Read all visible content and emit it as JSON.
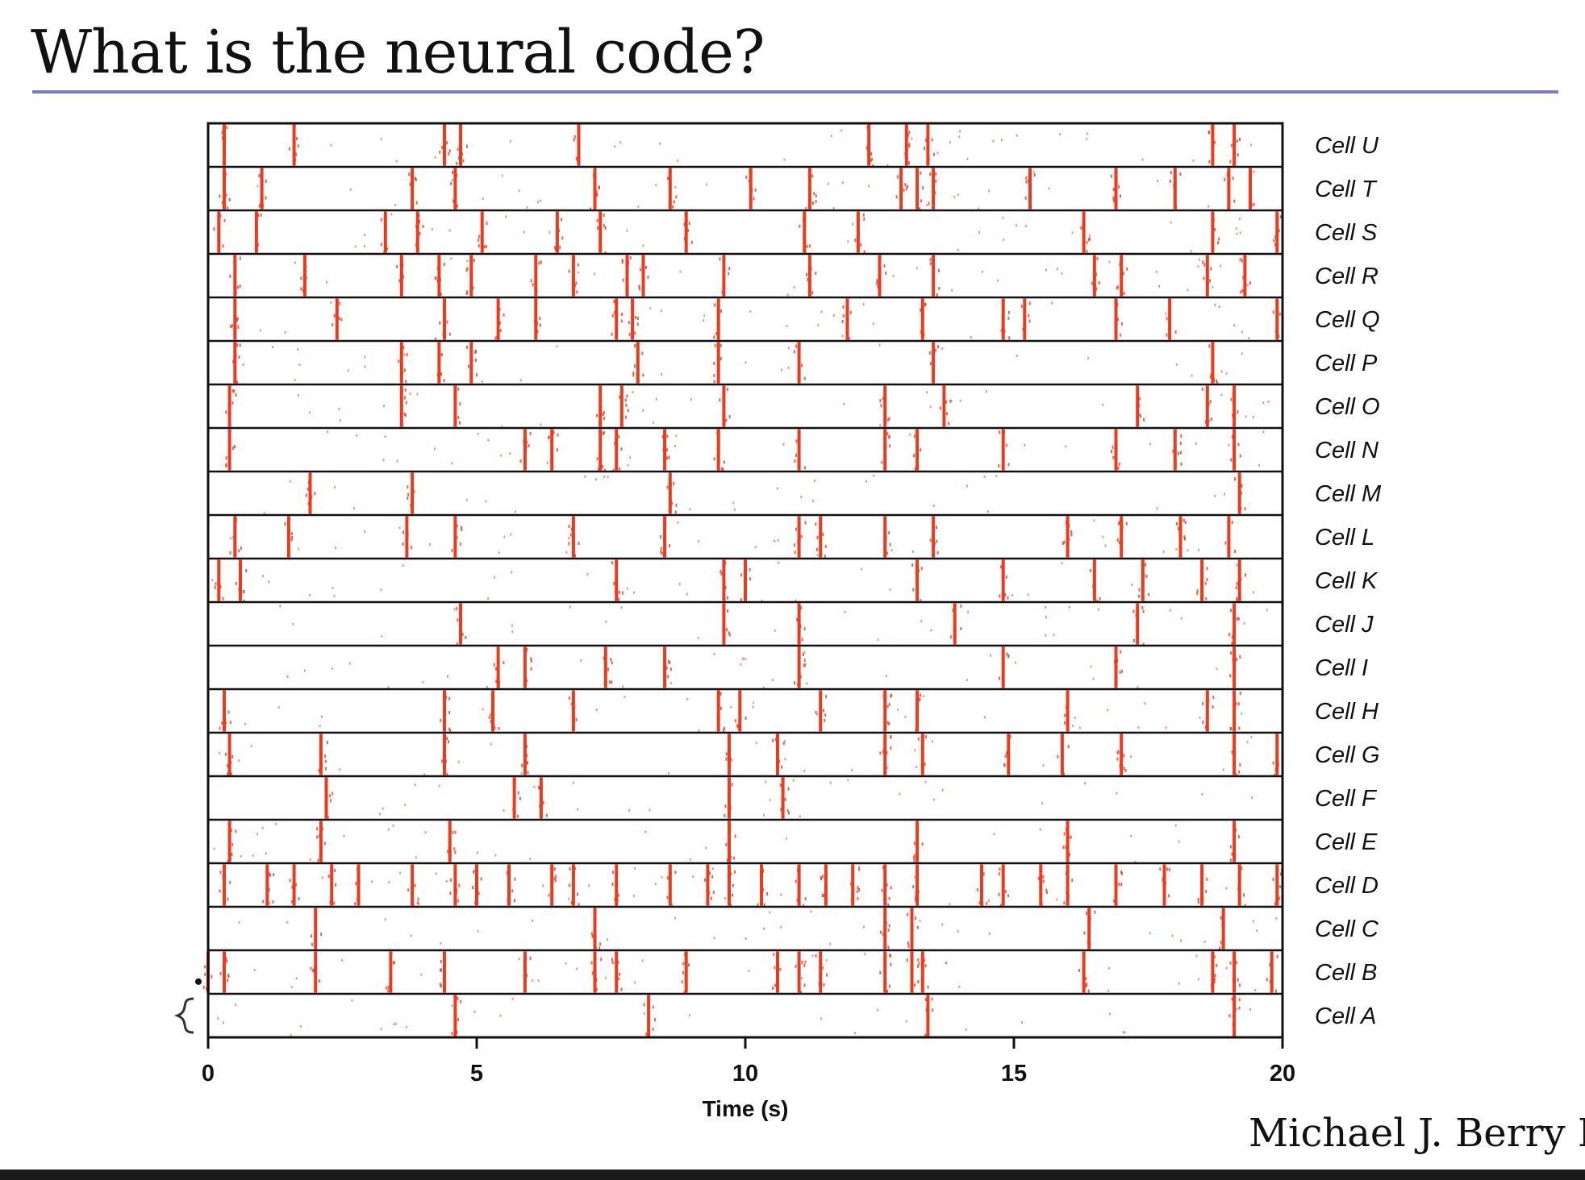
{
  "slide": {
    "title": "What is the neural code?",
    "credit": "Michael J. Berry II"
  },
  "colors": {
    "spike": "#ee3a1c",
    "title_rule": "#7b7bbd",
    "frame": "#111111"
  },
  "chart_data": {
    "type": "raster",
    "xlabel": "Time (s)",
    "ylabel": "",
    "xlim": [
      0,
      20
    ],
    "xticks": [
      0,
      5,
      10,
      15,
      20
    ],
    "cells": [
      {
        "label": "Cell U",
        "events": [
          0.3,
          1.6,
          4.4,
          4.7,
          6.9,
          12.3,
          13.0,
          13.4,
          18.7,
          19.1
        ]
      },
      {
        "label": "Cell T",
        "events": [
          0.3,
          1.0,
          3.8,
          4.6,
          7.2,
          8.6,
          10.1,
          11.2,
          12.9,
          13.2,
          13.5,
          15.3,
          16.9,
          18.0,
          19.0,
          19.4
        ]
      },
      {
        "label": "Cell S",
        "events": [
          0.2,
          0.9,
          3.3,
          3.9,
          5.1,
          6.5,
          7.3,
          8.9,
          11.1,
          12.1,
          16.3,
          18.7,
          19.9
        ]
      },
      {
        "label": "Cell R",
        "events": [
          0.5,
          1.8,
          3.6,
          4.3,
          4.9,
          6.1,
          6.8,
          7.8,
          8.1,
          9.6,
          11.2,
          12.5,
          13.5,
          16.5,
          17.0,
          18.6,
          19.3
        ]
      },
      {
        "label": "Cell Q",
        "events": [
          0.5,
          2.4,
          4.4,
          5.4,
          6.1,
          7.6,
          7.9,
          9.5,
          11.9,
          13.3,
          14.8,
          15.2,
          16.9,
          17.9,
          19.9
        ]
      },
      {
        "label": "Cell P",
        "events": [
          0.5,
          3.6,
          4.3,
          4.9,
          8.0,
          9.5,
          11.0,
          13.5,
          18.7
        ]
      },
      {
        "label": "Cell O",
        "events": [
          0.4,
          3.6,
          4.6,
          7.3,
          7.7,
          9.6,
          12.6,
          13.7,
          17.3,
          18.6,
          19.1
        ]
      },
      {
        "label": "Cell N",
        "events": [
          0.4,
          5.9,
          6.4,
          7.3,
          7.6,
          8.5,
          9.5,
          11.0,
          12.6,
          13.2,
          14.8,
          16.9,
          18.0,
          19.1
        ]
      },
      {
        "label": "Cell M",
        "events": [
          1.9,
          3.8,
          8.6,
          19.2
        ]
      },
      {
        "label": "Cell L",
        "events": [
          0.5,
          1.5,
          3.7,
          4.6,
          6.8,
          8.5,
          11.0,
          11.4,
          12.6,
          13.5,
          16.0,
          17.0,
          18.1,
          19.0
        ]
      },
      {
        "label": "Cell K",
        "events": [
          0.2,
          0.6,
          7.6,
          9.6,
          10.0,
          13.2,
          14.8,
          16.5,
          17.4,
          18.5,
          19.2
        ]
      },
      {
        "label": "Cell J",
        "events": [
          4.7,
          9.6,
          11.0,
          13.9,
          17.3,
          19.1
        ]
      },
      {
        "label": "Cell I",
        "events": [
          5.4,
          5.9,
          7.4,
          8.5,
          11.0,
          14.8,
          16.9,
          19.1
        ]
      },
      {
        "label": "Cell H",
        "events": [
          0.3,
          4.4,
          5.3,
          6.8,
          9.5,
          9.9,
          11.4,
          12.6,
          13.2,
          16.0,
          18.6,
          19.1
        ]
      },
      {
        "label": "Cell G",
        "events": [
          0.4,
          2.1,
          4.4,
          5.9,
          9.7,
          10.6,
          12.6,
          13.3,
          14.9,
          15.9,
          17.0,
          19.1,
          19.9
        ]
      },
      {
        "label": "Cell F",
        "events": [
          2.2,
          5.7,
          6.2,
          9.7,
          10.7
        ]
      },
      {
        "label": "Cell E",
        "events": [
          0.4,
          2.1,
          4.5,
          9.7,
          13.2,
          16.0,
          19.1
        ]
      },
      {
        "label": "Cell D",
        "events": [
          0.3,
          1.1,
          1.6,
          2.3,
          2.8,
          3.8,
          4.6,
          5.0,
          5.6,
          6.4,
          6.8,
          7.6,
          8.6,
          9.3,
          9.7,
          10.3,
          11.0,
          11.5,
          12.0,
          12.6,
          13.2,
          14.4,
          14.8,
          15.5,
          16.0,
          16.9,
          17.8,
          18.5,
          19.2,
          19.9
        ]
      },
      {
        "label": "Cell C",
        "events": [
          2.0,
          7.2,
          12.6,
          13.1,
          16.4,
          18.9
        ]
      },
      {
        "label": "Cell B",
        "events": [
          0.0,
          0.3,
          2.0,
          3.4,
          4.4,
          5.9,
          7.2,
          7.6,
          8.9,
          10.6,
          11.0,
          11.4,
          12.6,
          13.1,
          13.3,
          16.3,
          18.7,
          19.1,
          19.8
        ]
      },
      {
        "label": "Cell A",
        "events": [
          4.6,
          8.2,
          13.4,
          19.1
        ]
      }
    ]
  }
}
